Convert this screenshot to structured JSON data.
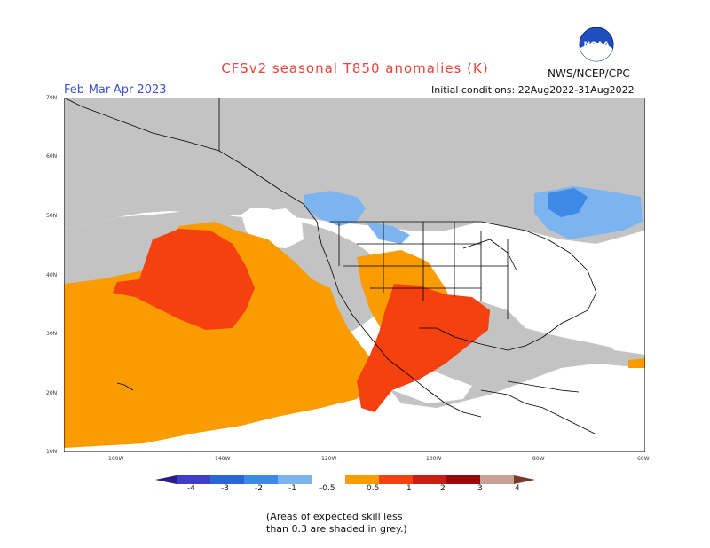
{
  "title": "CFSv2 seasonal T850 anomalies (K)",
  "season": "Feb-Mar-Apr 2023",
  "initial_conditions": "Initial conditions: 22Aug2022-31Aug2022",
  "agency": "NWS/NCEP/CPC",
  "logo_text": "NOAA",
  "lat_labels": [
    "70N",
    "60N",
    "50N",
    "40N",
    "30N",
    "20N",
    "10N"
  ],
  "lon_labels": [
    "160W",
    "140W",
    "120W",
    "100W",
    "80W",
    "60W"
  ],
  "colorbar": {
    "labels": [
      "-4",
      "-3",
      "-2",
      "-1",
      "-0.5",
      "0.5",
      "1",
      "2",
      "3",
      "4"
    ],
    "colors": {
      "lt_m4": "#2a1a8a",
      "m4_m3": "#3e3ec8",
      "m3_m2": "#2a64d6",
      "m2_m1": "#3c8ae6",
      "m1_m05": "#7cb4f0",
      "neutral": "#ffffff",
      "p05_p1": "#fa9b00",
      "p1_p2": "#f5400f",
      "p2_p3": "#c81e14",
      "p3_p4": "#960a0a",
      "p4_p5": "#c9a096",
      "gt_p5": "#7a3a28"
    }
  },
  "skill_note_line1": "(Areas of expected skill less",
  "skill_note_line2": "than 0.3 are shaded in grey.)",
  "map_colors": {
    "grey": "#c3c3c3",
    "ocean": "#ffffff"
  }
}
